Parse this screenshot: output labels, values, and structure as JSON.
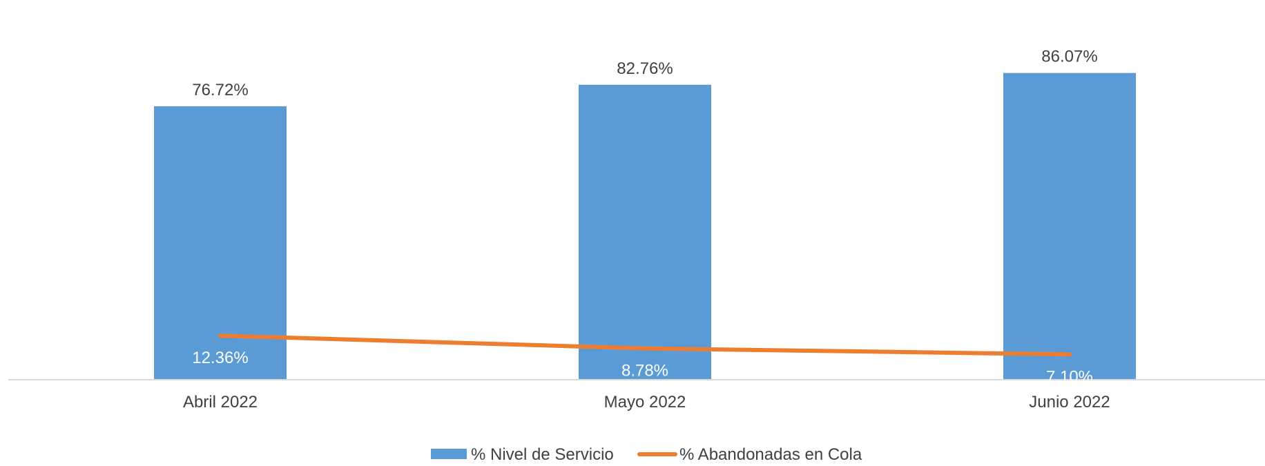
{
  "chart_data": {
    "type": "bar",
    "categories": [
      "Abril 2022",
      "Mayo 2022",
      "Junio 2022"
    ],
    "series": [
      {
        "name": "% Nivel de Servicio",
        "type": "bar",
        "values": [
          76.72,
          82.76,
          86.07
        ],
        "labels": [
          "76.72%",
          "82.76%",
          "86.07%"
        ]
      },
      {
        "name": "% Abandonadas en Cola",
        "type": "line",
        "values": [
          12.36,
          8.78,
          7.1
        ],
        "labels": [
          "12.36%",
          "8.78%",
          "7.10%"
        ]
      }
    ],
    "title": "",
    "xlabel": "",
    "ylabel": "",
    "ylim": [
      0,
      90
    ],
    "grid": false,
    "legend": "bottom",
    "colors": {
      "bar": "#5b9bd5",
      "line": "#ed7d31",
      "axis": "#d9d9d9"
    }
  }
}
